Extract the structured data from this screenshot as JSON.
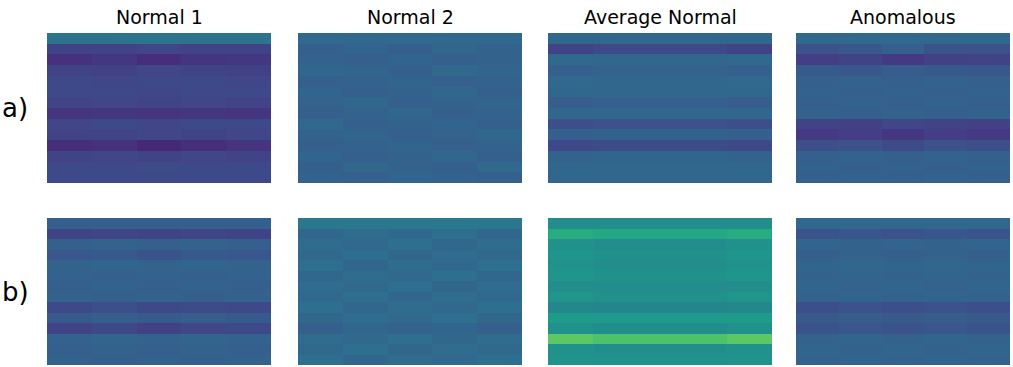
{
  "chart_data": {
    "type": "heatmap",
    "color": "Viridis",
    "tick_labels": false,
    "color_range": [
      0,
      1
    ],
    "columns": [
      "Normal 1",
      "Normal 2",
      "Average Normal",
      "Anomalous"
    ],
    "rows": [
      {
        "label": "a)",
        "cells": [
          [
            [
              0.38,
              0.38,
              0.38,
              0.38,
              0.38
            ],
            [
              0.2,
              0.2,
              0.21,
              0.2,
              0.2
            ],
            [
              0.14,
              0.16,
              0.13,
              0.15,
              0.16
            ],
            [
              0.2,
              0.19,
              0.21,
              0.2,
              0.19
            ],
            [
              0.22,
              0.21,
              0.22,
              0.22,
              0.21
            ],
            [
              0.22,
              0.22,
              0.21,
              0.22,
              0.22
            ],
            [
              0.2,
              0.21,
              0.2,
              0.21,
              0.2
            ],
            [
              0.15,
              0.16,
              0.15,
              0.16,
              0.15
            ],
            [
              0.21,
              0.22,
              0.21,
              0.22,
              0.22
            ],
            [
              0.2,
              0.2,
              0.21,
              0.2,
              0.21
            ],
            [
              0.13,
              0.14,
              0.11,
              0.13,
              0.15
            ],
            [
              0.2,
              0.21,
              0.2,
              0.21,
              0.2
            ],
            [
              0.22,
              0.22,
              0.23,
              0.22,
              0.22
            ],
            [
              0.22,
              0.22,
              0.22,
              0.22,
              0.22
            ]
          ],
          [
            [
              0.34,
              0.34,
              0.34,
              0.34,
              0.34
            ],
            [
              0.3,
              0.32,
              0.3,
              0.33,
              0.31
            ],
            [
              0.31,
              0.3,
              0.32,
              0.3,
              0.31
            ],
            [
              0.33,
              0.32,
              0.3,
              0.34,
              0.32
            ],
            [
              0.3,
              0.31,
              0.32,
              0.3,
              0.31
            ],
            [
              0.32,
              0.3,
              0.31,
              0.33,
              0.3
            ],
            [
              0.31,
              0.33,
              0.3,
              0.31,
              0.32
            ],
            [
              0.3,
              0.31,
              0.33,
              0.3,
              0.31
            ],
            [
              0.34,
              0.3,
              0.31,
              0.32,
              0.3
            ],
            [
              0.31,
              0.32,
              0.3,
              0.31,
              0.33
            ],
            [
              0.3,
              0.31,
              0.32,
              0.3,
              0.31
            ],
            [
              0.32,
              0.3,
              0.31,
              0.33,
              0.3
            ],
            [
              0.3,
              0.33,
              0.31,
              0.3,
              0.34
            ],
            [
              0.31,
              0.3,
              0.32,
              0.31,
              0.3
            ]
          ],
          [
            [
              0.33,
              0.33,
              0.33,
              0.33,
              0.33
            ],
            [
              0.2,
              0.22,
              0.22,
              0.22,
              0.2
            ],
            [
              0.34,
              0.33,
              0.33,
              0.33,
              0.34
            ],
            [
              0.3,
              0.31,
              0.31,
              0.31,
              0.3
            ],
            [
              0.34,
              0.33,
              0.33,
              0.33,
              0.34
            ],
            [
              0.33,
              0.33,
              0.33,
              0.33,
              0.33
            ],
            [
              0.29,
              0.3,
              0.3,
              0.3,
              0.29
            ],
            [
              0.33,
              0.33,
              0.33,
              0.33,
              0.33
            ],
            [
              0.24,
              0.25,
              0.25,
              0.25,
              0.24
            ],
            [
              0.3,
              0.31,
              0.31,
              0.31,
              0.3
            ],
            [
              0.22,
              0.23,
              0.23,
              0.23,
              0.22
            ],
            [
              0.31,
              0.32,
              0.32,
              0.32,
              0.31
            ],
            [
              0.33,
              0.33,
              0.33,
              0.33,
              0.33
            ],
            [
              0.33,
              0.33,
              0.33,
              0.33,
              0.33
            ]
          ],
          [
            [
              0.34,
              0.34,
              0.34,
              0.34,
              0.34
            ],
            [
              0.25,
              0.27,
              0.3,
              0.26,
              0.25
            ],
            [
              0.18,
              0.2,
              0.17,
              0.19,
              0.2
            ],
            [
              0.28,
              0.27,
              0.29,
              0.28,
              0.27
            ],
            [
              0.3,
              0.31,
              0.3,
              0.31,
              0.3
            ],
            [
              0.31,
              0.3,
              0.31,
              0.3,
              0.31
            ],
            [
              0.3,
              0.31,
              0.3,
              0.31,
              0.3
            ],
            [
              0.31,
              0.3,
              0.31,
              0.3,
              0.31
            ],
            [
              0.2,
              0.19,
              0.21,
              0.2,
              0.19
            ],
            [
              0.17,
              0.18,
              0.16,
              0.18,
              0.17
            ],
            [
              0.24,
              0.25,
              0.23,
              0.25,
              0.24
            ],
            [
              0.3,
              0.31,
              0.3,
              0.31,
              0.3
            ],
            [
              0.31,
              0.3,
              0.31,
              0.3,
              0.31
            ],
            [
              0.3,
              0.31,
              0.3,
              0.31,
              0.3
            ]
          ]
        ]
      },
      {
        "label": "b)",
        "cells": [
          [
            [
              0.3,
              0.3,
              0.3,
              0.3,
              0.3
            ],
            [
              0.2,
              0.21,
              0.2,
              0.21,
              0.2
            ],
            [
              0.3,
              0.31,
              0.3,
              0.31,
              0.3
            ],
            [
              0.27,
              0.28,
              0.26,
              0.28,
              0.27
            ],
            [
              0.31,
              0.32,
              0.31,
              0.32,
              0.31
            ],
            [
              0.31,
              0.3,
              0.31,
              0.3,
              0.31
            ],
            [
              0.3,
              0.31,
              0.3,
              0.31,
              0.3
            ],
            [
              0.31,
              0.3,
              0.31,
              0.3,
              0.31
            ],
            [
              0.22,
              0.24,
              0.22,
              0.23,
              0.22
            ],
            [
              0.28,
              0.29,
              0.28,
              0.29,
              0.28
            ],
            [
              0.2,
              0.22,
              0.19,
              0.21,
              0.22
            ],
            [
              0.31,
              0.32,
              0.31,
              0.32,
              0.31
            ],
            [
              0.3,
              0.31,
              0.3,
              0.31,
              0.3
            ],
            [
              0.31,
              0.3,
              0.31,
              0.3,
              0.31
            ]
          ],
          [
            [
              0.4,
              0.4,
              0.4,
              0.4,
              0.4
            ],
            [
              0.33,
              0.35,
              0.34,
              0.36,
              0.33
            ],
            [
              0.35,
              0.34,
              0.36,
              0.33,
              0.35
            ],
            [
              0.34,
              0.36,
              0.33,
              0.35,
              0.34
            ],
            [
              0.36,
              0.33,
              0.35,
              0.34,
              0.36
            ],
            [
              0.33,
              0.35,
              0.34,
              0.36,
              0.33
            ],
            [
              0.35,
              0.34,
              0.36,
              0.33,
              0.35
            ],
            [
              0.34,
              0.36,
              0.33,
              0.35,
              0.34
            ],
            [
              0.36,
              0.33,
              0.35,
              0.34,
              0.36
            ],
            [
              0.33,
              0.35,
              0.34,
              0.36,
              0.33
            ],
            [
              0.3,
              0.33,
              0.31,
              0.32,
              0.3
            ],
            [
              0.35,
              0.34,
              0.36,
              0.33,
              0.35
            ],
            [
              0.34,
              0.36,
              0.33,
              0.35,
              0.34
            ],
            [
              0.36,
              0.33,
              0.35,
              0.34,
              0.36
            ]
          ],
          [
            [
              0.48,
              0.48,
              0.48,
              0.48,
              0.48
            ],
            [
              0.62,
              0.6,
              0.6,
              0.6,
              0.62
            ],
            [
              0.5,
              0.48,
              0.48,
              0.48,
              0.5
            ],
            [
              0.52,
              0.5,
              0.5,
              0.5,
              0.52
            ],
            [
              0.5,
              0.49,
              0.49,
              0.49,
              0.5
            ],
            [
              0.52,
              0.5,
              0.5,
              0.5,
              0.52
            ],
            [
              0.49,
              0.48,
              0.48,
              0.48,
              0.49
            ],
            [
              0.52,
              0.5,
              0.5,
              0.5,
              0.52
            ],
            [
              0.46,
              0.45,
              0.45,
              0.45,
              0.46
            ],
            [
              0.55,
              0.54,
              0.54,
              0.54,
              0.55
            ],
            [
              0.5,
              0.49,
              0.49,
              0.49,
              0.5
            ],
            [
              0.75,
              0.72,
              0.72,
              0.72,
              0.75
            ],
            [
              0.5,
              0.49,
              0.49,
              0.49,
              0.5
            ],
            [
              0.51,
              0.5,
              0.5,
              0.5,
              0.51
            ]
          ],
          [
            [
              0.33,
              0.33,
              0.33,
              0.33,
              0.33
            ],
            [
              0.26,
              0.27,
              0.25,
              0.27,
              0.26
            ],
            [
              0.32,
              0.31,
              0.32,
              0.31,
              0.32
            ],
            [
              0.3,
              0.31,
              0.3,
              0.31,
              0.3
            ],
            [
              0.32,
              0.33,
              0.32,
              0.33,
              0.32
            ],
            [
              0.31,
              0.32,
              0.31,
              0.32,
              0.31
            ],
            [
              0.32,
              0.31,
              0.32,
              0.31,
              0.32
            ],
            [
              0.31,
              0.32,
              0.31,
              0.32,
              0.31
            ],
            [
              0.24,
              0.26,
              0.24,
              0.25,
              0.24
            ],
            [
              0.28,
              0.29,
              0.28,
              0.29,
              0.28
            ],
            [
              0.26,
              0.27,
              0.25,
              0.27,
              0.26
            ],
            [
              0.31,
              0.32,
              0.31,
              0.32,
              0.31
            ],
            [
              0.32,
              0.31,
              0.32,
              0.31,
              0.32
            ],
            [
              0.31,
              0.32,
              0.31,
              0.32,
              0.31
            ]
          ]
        ]
      }
    ]
  }
}
